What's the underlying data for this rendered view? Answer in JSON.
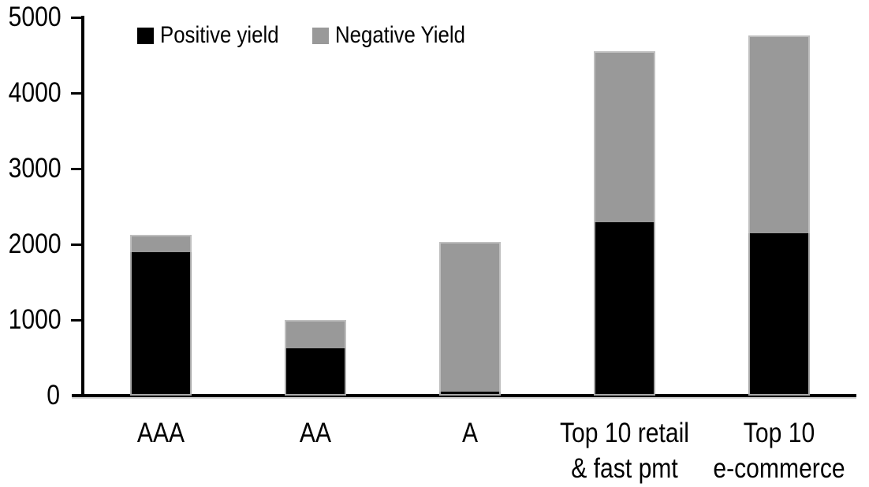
{
  "chart_data": {
    "type": "bar",
    "stacked": true,
    "title": "",
    "xlabel": "",
    "ylabel": "",
    "categories": [
      "AAA",
      "AA",
      "A",
      "Top 10 retail\n& fast pmt",
      "Top 10\ne-commerce"
    ],
    "series": [
      {
        "name": "Positive yield",
        "color": "#000000",
        "values": [
          1900,
          630,
          50,
          2290,
          2150
        ]
      },
      {
        "name": "Negative Yield",
        "color": "#999999",
        "values": [
          220,
          375,
          1985,
          2265,
          2610
        ]
      }
    ],
    "totals": [
      2120,
      1005,
      2035,
      4555,
      4760
    ],
    "ylim": [
      0,
      5000
    ],
    "yticks": [
      0,
      1000,
      2000,
      3000,
      4000,
      5000
    ],
    "grid": false,
    "legend_position": "top-inside",
    "axis_color": "#000000",
    "background_color": "#ffffff"
  }
}
